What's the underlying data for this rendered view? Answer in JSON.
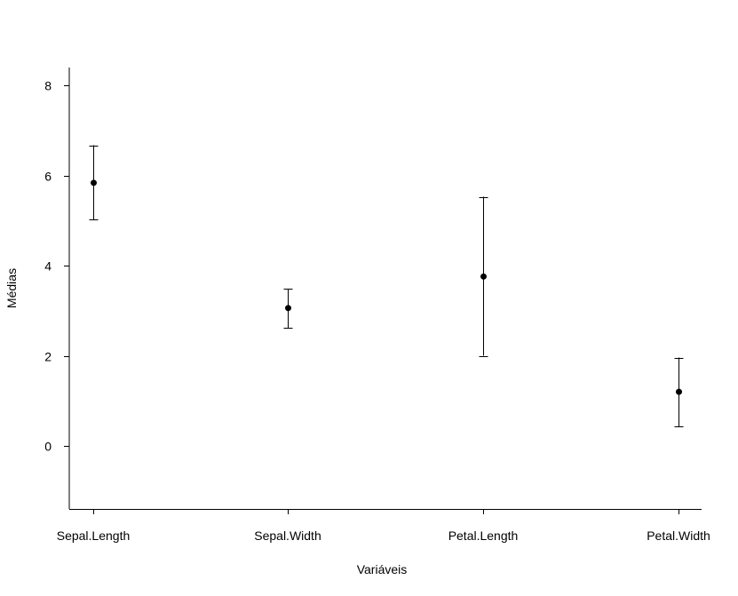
{
  "chart_data": {
    "type": "scatter",
    "title": "",
    "xlabel": "Variáveis",
    "ylabel": "Médias",
    "categories": [
      "Sepal.Length",
      "Sepal.Width",
      "Petal.Length",
      "Petal.Width"
    ],
    "values": [
      5.84,
      3.06,
      3.76,
      1.2
    ],
    "error_low": [
      5.02,
      2.62,
      2.0,
      0.43
    ],
    "error_high": [
      6.67,
      3.49,
      5.53,
      1.96
    ],
    "ylim": [
      -1.4,
      8.4
    ],
    "yticks": [
      0,
      2,
      4,
      6,
      8
    ],
    "grid": false,
    "colors": {
      "ink": "#000000"
    }
  }
}
